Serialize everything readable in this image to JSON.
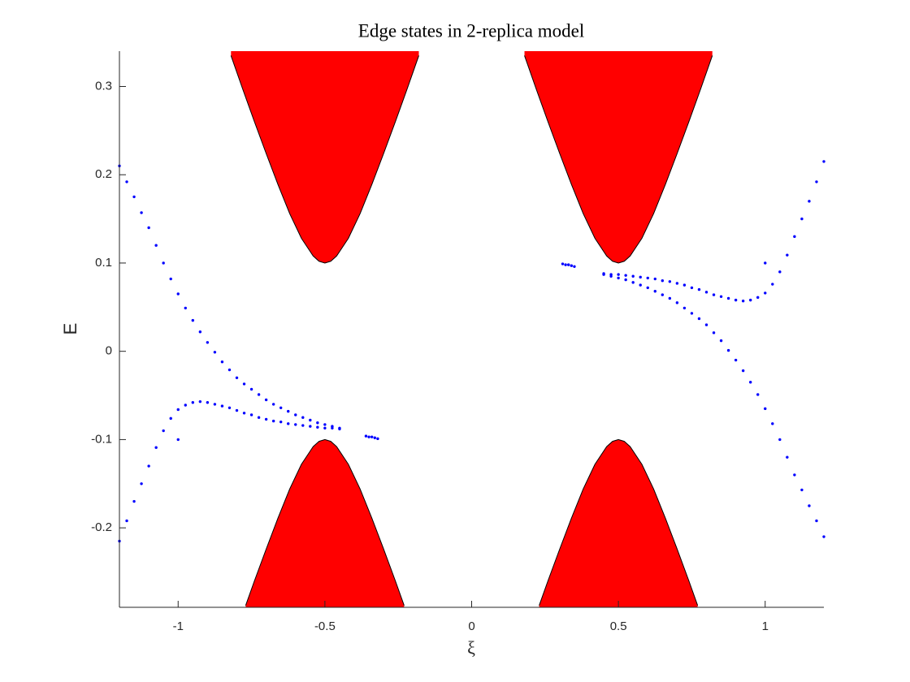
{
  "chart_data": {
    "type": "scatter",
    "title": "Edge states in 2-replica model",
    "xlabel": "ξ",
    "ylabel": "E",
    "xlim": [
      -1.2,
      1.2
    ],
    "ylim": [
      -0.29,
      0.34
    ],
    "xticks": [
      -1,
      -0.5,
      0,
      0.5,
      1
    ],
    "yticks": [
      -0.2,
      -0.1,
      0,
      0.1,
      0.2,
      0.3
    ],
    "series": [
      {
        "type": "band",
        "color": "#ff0000",
        "x": [
          -0.82,
          -0.78,
          -0.74,
          -0.7,
          -0.66,
          -0.62,
          -0.58,
          -0.54,
          -0.52,
          -0.5,
          -0.48,
          -0.46,
          -0.42,
          -0.38,
          -0.34,
          -0.3,
          -0.26,
          -0.22,
          -0.18
        ],
        "values": [
          0.335,
          0.297,
          0.26,
          0.224,
          0.189,
          0.156,
          0.128,
          0.108,
          0.102,
          0.1,
          0.102,
          0.108,
          0.128,
          0.156,
          0.189,
          0.224,
          0.26,
          0.297,
          0.335
        ]
      },
      {
        "type": "band",
        "color": "#ff0000",
        "x": [
          0.18,
          0.22,
          0.26,
          0.3,
          0.34,
          0.38,
          0.42,
          0.46,
          0.48,
          0.5,
          0.52,
          0.54,
          0.58,
          0.62,
          0.66,
          0.7,
          0.74,
          0.78,
          0.82
        ],
        "values": [
          0.335,
          0.297,
          0.26,
          0.224,
          0.189,
          0.156,
          0.128,
          0.108,
          0.102,
          0.1,
          0.102,
          0.108,
          0.128,
          0.156,
          0.189,
          0.224,
          0.26,
          0.297,
          0.335
        ]
      },
      {
        "type": "band",
        "color": "#ff0000",
        "x": [
          -0.77,
          -0.74,
          -0.7,
          -0.66,
          -0.62,
          -0.58,
          -0.54,
          -0.52,
          -0.5,
          -0.48,
          -0.46,
          -0.42,
          -0.38,
          -0.34,
          -0.3,
          -0.26,
          -0.23
        ],
        "values": [
          -0.288,
          -0.26,
          -0.224,
          -0.189,
          -0.156,
          -0.128,
          -0.108,
          -0.102,
          -0.1,
          -0.102,
          -0.108,
          -0.128,
          -0.156,
          -0.189,
          -0.224,
          -0.26,
          -0.288
        ]
      },
      {
        "type": "band",
        "color": "#ff0000",
        "x": [
          0.23,
          0.26,
          0.3,
          0.34,
          0.38,
          0.42,
          0.46,
          0.48,
          0.5,
          0.52,
          0.54,
          0.58,
          0.62,
          0.66,
          0.7,
          0.74,
          0.77
        ],
        "values": [
          -0.288,
          -0.26,
          -0.224,
          -0.189,
          -0.156,
          -0.128,
          -0.108,
          -0.102,
          -0.1,
          -0.102,
          -0.108,
          -0.128,
          -0.156,
          -0.189,
          -0.224,
          -0.26,
          -0.288
        ]
      },
      {
        "type": "scatter",
        "color": "#0000ff",
        "x": [
          -1.2,
          -1.175,
          -1.15,
          -1.125,
          -1.1,
          -1.075,
          -1.05,
          -1.025,
          -1,
          -0.975,
          -0.95,
          -0.925,
          -0.9,
          -0.875,
          -0.85,
          -0.825,
          -0.8,
          -0.775,
          -0.75,
          -0.725,
          -0.7,
          -0.675,
          -0.65,
          -0.625,
          -0.6,
          -0.575,
          -0.55,
          -0.525,
          -0.5,
          -0.475,
          -0.45
        ],
        "values": [
          0.21,
          0.192,
          0.175,
          0.157,
          0.14,
          0.12,
          0.1,
          0.082,
          0.065,
          0.049,
          0.035,
          0.022,
          0.01,
          -0.001,
          -0.012,
          -0.021,
          -0.03,
          -0.037,
          -0.043,
          -0.049,
          -0.055,
          -0.06,
          -0.064,
          -0.068,
          -0.072,
          -0.075,
          -0.078,
          -0.081,
          -0.083,
          -0.085,
          -0.087
        ]
      },
      {
        "type": "scatter",
        "color": "#0000ff",
        "x": [
          -1.2,
          -1.175,
          -1.15,
          -1.125,
          -1.1,
          -1.075,
          -1.05,
          -1.025,
          -1,
          -0.975,
          -0.95,
          -0.925,
          -0.9,
          -0.875,
          -0.85,
          -0.825,
          -0.8,
          -0.775,
          -0.75,
          -0.725,
          -0.7,
          -0.675,
          -0.65,
          -0.625,
          -0.6,
          -0.575,
          -0.55,
          -0.525,
          -0.5,
          -0.475,
          -0.45
        ],
        "values": [
          -0.215,
          -0.192,
          -0.17,
          -0.15,
          -0.13,
          -0.109,
          -0.09,
          -0.076,
          -0.066,
          -0.061,
          -0.058,
          -0.057,
          -0.058,
          -0.06,
          -0.062,
          -0.064,
          -0.067,
          -0.07,
          -0.072,
          -0.075,
          -0.077,
          -0.079,
          -0.08,
          -0.082,
          -0.083,
          -0.084,
          -0.085,
          -0.086,
          -0.087,
          -0.087,
          -0.088
        ]
      },
      {
        "type": "scatter",
        "color": "#0000ff",
        "x": [
          1.2,
          1.175,
          1.15,
          1.125,
          1.1,
          1.075,
          1.05,
          1.025,
          1,
          0.975,
          0.95,
          0.925,
          0.9,
          0.875,
          0.85,
          0.825,
          0.8,
          0.775,
          0.75,
          0.725,
          0.7,
          0.675,
          0.65,
          0.625,
          0.6,
          0.575,
          0.55,
          0.525,
          0.5,
          0.475,
          0.45
        ],
        "values": [
          -0.21,
          -0.192,
          -0.175,
          -0.157,
          -0.14,
          -0.12,
          -0.1,
          -0.082,
          -0.065,
          -0.049,
          -0.035,
          -0.022,
          -0.01,
          0.001,
          0.012,
          0.021,
          0.03,
          0.037,
          0.043,
          0.049,
          0.055,
          0.06,
          0.064,
          0.068,
          0.072,
          0.075,
          0.078,
          0.081,
          0.083,
          0.085,
          0.087
        ]
      },
      {
        "type": "scatter",
        "color": "#0000ff",
        "x": [
          1.2,
          1.175,
          1.15,
          1.125,
          1.1,
          1.075,
          1.05,
          1.025,
          1,
          0.975,
          0.95,
          0.925,
          0.9,
          0.875,
          0.85,
          0.825,
          0.8,
          0.775,
          0.75,
          0.725,
          0.7,
          0.675,
          0.65,
          0.625,
          0.6,
          0.575,
          0.55,
          0.525,
          0.5,
          0.475,
          0.45
        ],
        "values": [
          0.215,
          0.192,
          0.17,
          0.15,
          0.13,
          0.109,
          0.09,
          0.076,
          0.066,
          0.061,
          0.058,
          0.057,
          0.058,
          0.06,
          0.062,
          0.064,
          0.067,
          0.07,
          0.072,
          0.075,
          0.077,
          0.079,
          0.08,
          0.082,
          0.083,
          0.084,
          0.085,
          0.086,
          0.087,
          0.087,
          0.088
        ]
      },
      {
        "type": "scatter",
        "color": "#0000ff",
        "x": [
          -1,
          -0.36,
          -0.35,
          -0.34,
          -0.33,
          -0.32,
          1,
          0.31,
          0.32,
          0.33,
          0.34,
          0.35
        ],
        "values": [
          -0.1,
          -0.096,
          -0.097,
          -0.097,
          -0.098,
          -0.099,
          0.1,
          0.099,
          0.098,
          0.098,
          0.097,
          0.096
        ]
      }
    ]
  }
}
